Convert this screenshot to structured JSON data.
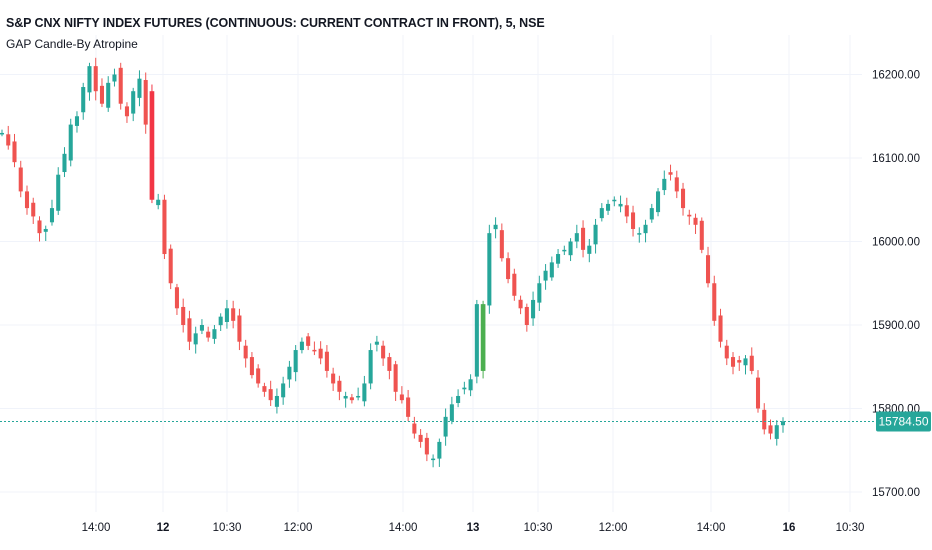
{
  "header": {
    "title": "S&P CNX NIFTY INDEX FUTURES (CONTINUOUS: CURRENT CONTRACT IN FRONT), 5, NSE",
    "indicator": "GAP Candle-By Atropine"
  },
  "colors": {
    "up": "#26a69a",
    "down": "#ef5350",
    "gap_up": "#4caf50",
    "gap_down": "#f23645",
    "grid": "#f0f3fa",
    "last_price": "#26a69a"
  },
  "chart_data": {
    "type": "candlestick",
    "interval": "5",
    "ylim": [
      15670,
      16240
    ],
    "y_ticks": [
      "16200.00",
      "16100.00",
      "16000.00",
      "15900.00",
      "15800.00",
      "15700.00"
    ],
    "x_ticks": [
      {
        "label": "14:00",
        "bold": false
      },
      {
        "label": "12",
        "bold": true
      },
      {
        "label": "10:30",
        "bold": false
      },
      {
        "label": "12:00",
        "bold": false
      },
      {
        "label": "14:00",
        "bold": false
      },
      {
        "label": "13",
        "bold": true
      },
      {
        "label": "10:30",
        "bold": false
      },
      {
        "label": "12:00",
        "bold": false
      },
      {
        "label": "14:00",
        "bold": false
      },
      {
        "label": "16",
        "bold": true
      },
      {
        "label": "10:30",
        "bold": false
      }
    ],
    "last_price": 15784.5,
    "last_price_label": "15784.50",
    "close_path": [
      16130,
      16115,
      16095,
      16060,
      16040,
      16030,
      16010,
      16015,
      16040,
      16080,
      16105,
      16140,
      16150,
      16185,
      16210,
      16180,
      16165,
      16190,
      16200,
      16165,
      16150,
      16180,
      16195,
      16140,
      16120,
      16050,
      15985,
      15950,
      15920,
      15900,
      15880,
      15890,
      15900,
      15885,
      15895,
      15910,
      15920,
      15905,
      15880,
      15860,
      15840,
      15830,
      15820,
      15810,
      15815,
      15830,
      15850,
      15870,
      15880,
      15875,
      15870,
      15860,
      15845,
      15830,
      15820,
      15815,
      15810,
      15815,
      15830,
      15870,
      15880,
      15860,
      15845,
      15820,
      15810,
      15790,
      15770,
      15760,
      15745,
      15740,
      15760,
      15790,
      15805,
      15815,
      15825,
      15835,
      15925,
      15980,
      16010,
      16020,
      15980,
      15955,
      15935,
      15920,
      15900,
      15930,
      15950,
      15965,
      15975,
      15985,
      15990,
      16000,
      16010,
      15990,
      15995,
      16020,
      16040,
      16045,
      16050,
      16045,
      16030,
      16015,
      16010,
      16020,
      16040,
      16060,
      16075,
      16080,
      16060,
      16040,
      16030,
      16020,
      15990,
      15950,
      15905,
      15880,
      15860,
      15850,
      15855,
      15860,
      15845,
      15800,
      15775,
      15770,
      15780,
      15784.5
    ],
    "gap_candles": [
      {
        "index": 24,
        "open": 16180,
        "close": 16050,
        "kind": "gap-down"
      },
      {
        "index": 77,
        "open": 15845,
        "close": 15925,
        "kind": "gap-up"
      }
    ]
  }
}
